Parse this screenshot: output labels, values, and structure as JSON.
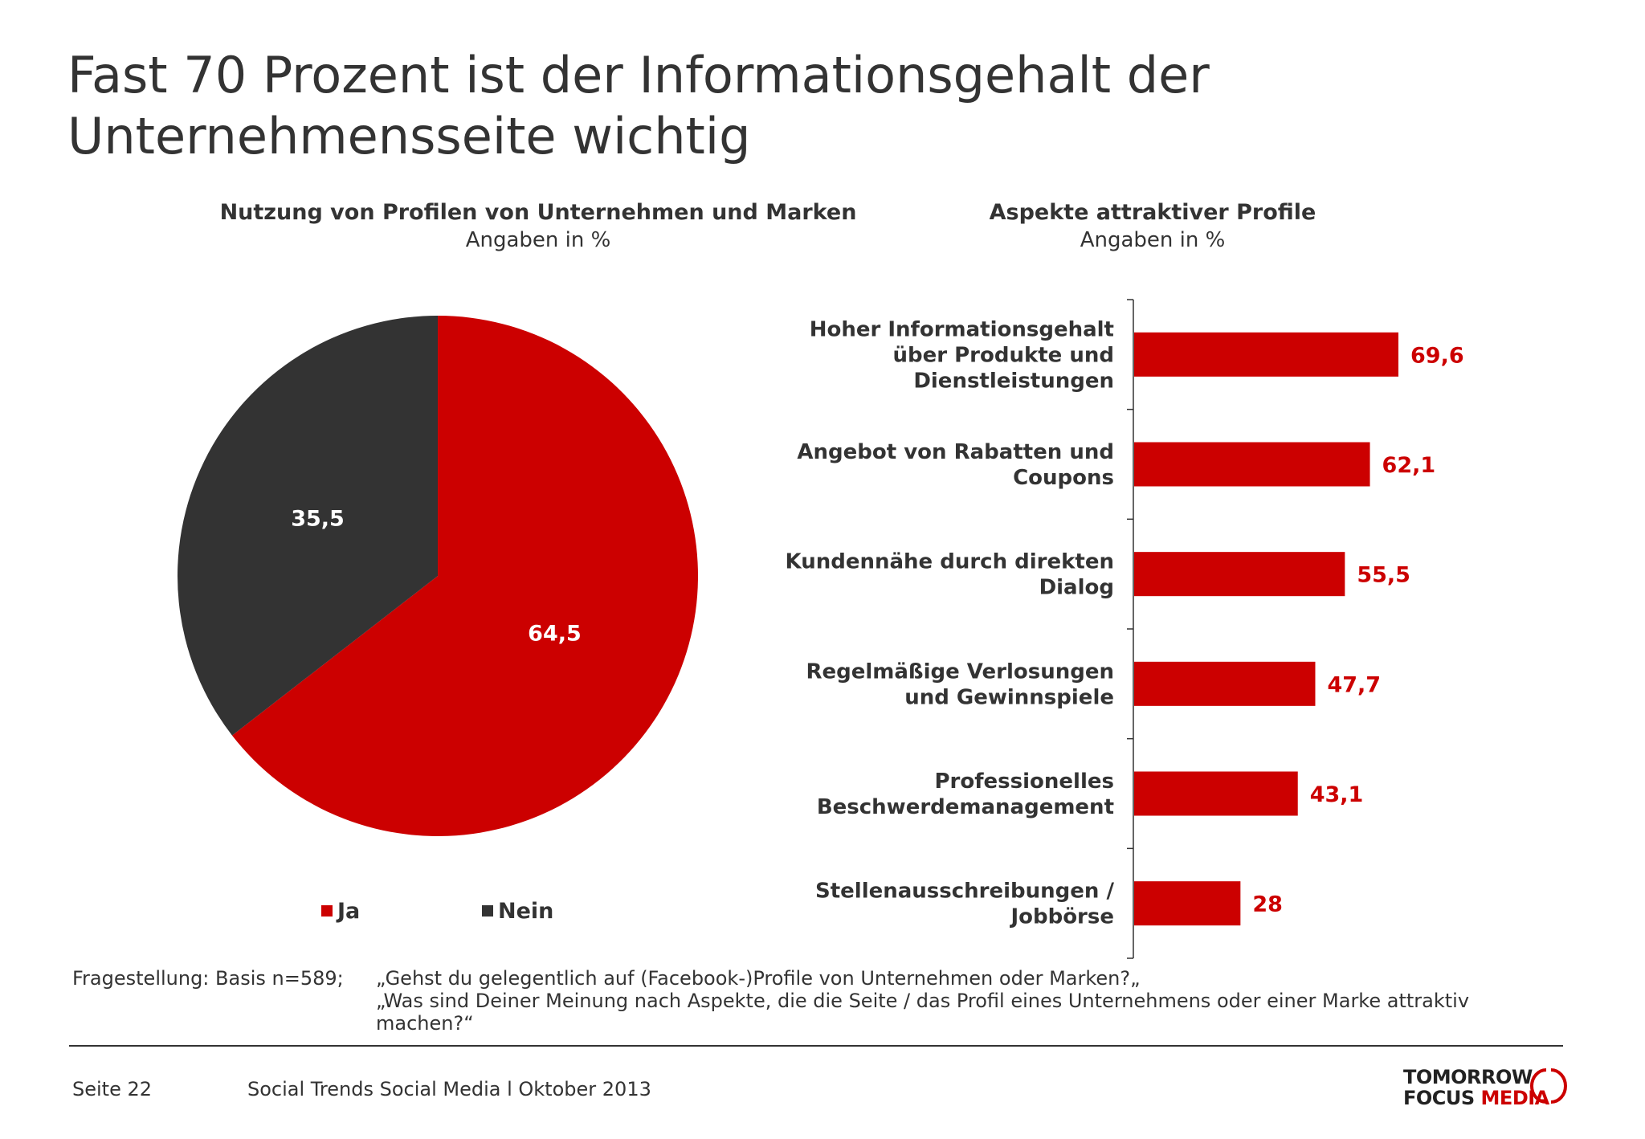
{
  "slide": {
    "title_line1": "Fast 70 Prozent ist der Informationsgehalt der",
    "title_line2": "Unternehmensseite wichtig"
  },
  "chart_data": [
    {
      "type": "pie",
      "title": "Nutzung von Profilen von Unternehmen und Marken",
      "subtitle": "Angaben in %",
      "slices": [
        {
          "label": "Ja",
          "value": 64.5,
          "display": "64,5",
          "color": "#cc0000"
        },
        {
          "label": "Nein",
          "value": 35.5,
          "display": "35,5",
          "color": "#333333"
        }
      ],
      "legend_position": "bottom"
    },
    {
      "type": "bar",
      "orientation": "horizontal",
      "title": "Aspekte attraktiver Profile",
      "subtitle": "Angaben in %",
      "color": "#cc0000",
      "categories": [
        [
          "Hoher Informationsgehalt",
          "über Produkte und",
          "Dienstleistungen"
        ],
        [
          "Angebot von Rabatten und",
          "Coupons"
        ],
        [
          "Kundennähe durch direkten",
          "Dialog"
        ],
        [
          "Regelmäßige Verlosungen",
          "und Gewinnspiele"
        ],
        [
          "Professionelles",
          "Beschwerdemanagement"
        ],
        [
          "Stellenausschreibungen /",
          "Jobbörse"
        ]
      ],
      "values": [
        69.6,
        62.1,
        55.5,
        47.7,
        43.1,
        28
      ],
      "value_labels": [
        "69,6",
        "62,1",
        "55,5",
        "47,7",
        "43,1",
        "28"
      ],
      "xlim": [
        0,
        100
      ]
    }
  ],
  "notes": {
    "label": "Fragestellung: Basis n=589;",
    "line1": "„Gehst du gelegentlich auf (Facebook-)Profile von Unternehmen oder Marken?„",
    "line2": "„Was sind Deiner Meinung nach Aspekte, die die Seite / das Profil eines Unternehmens oder einer Marke attraktiv",
    "line3": "machen?“"
  },
  "footer": {
    "page": "Seite 22",
    "source": "Social Trends Social Media l Oktober 2013"
  },
  "logo": {
    "line1": "TOMORROW",
    "line2a": "FOCUS ",
    "line2b": "MEDIA"
  }
}
